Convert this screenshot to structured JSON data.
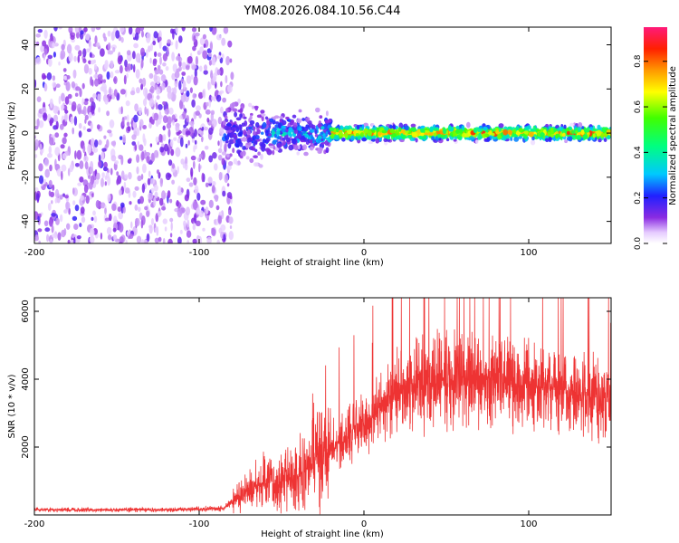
{
  "chart_data": [
    {
      "type": "heatmap",
      "title": "YM08.2026.084.10.56.C44",
      "xlabel": "Height of straight line (km)",
      "ylabel": "Frequency (Hz)",
      "xlim": [
        -200,
        150
      ],
      "ylim": [
        -50,
        48
      ],
      "xticks": [
        -200,
        -100,
        0,
        100
      ],
      "yticks": [
        -40,
        -20,
        0,
        20,
        40
      ],
      "colorbar": {
        "label": "Normalized spectral amplitude",
        "range": [
          0,
          0.95
        ],
        "ticks": [
          0.0,
          0.2,
          0.4,
          0.6,
          0.8
        ]
      },
      "regions": [
        {
          "x_range": [
            -200,
            -80
          ],
          "freq_range": [
            -50,
            48
          ],
          "amplitude": "0.05-0.15 (noise)"
        },
        {
          "x_range": [
            -80,
            -30
          ],
          "freq_range": [
            -10,
            10
          ],
          "amplitude": "0.1-0.4"
        },
        {
          "x_range": [
            -30,
            150
          ],
          "freq_range": [
            -4,
            4
          ],
          "amplitude": "0.3-0.95 peak near 0 Hz"
        }
      ]
    },
    {
      "type": "line",
      "xlabel": "Height of straight line (km)",
      "ylabel": "SNR (10 * v/v)",
      "xlim": [
        -200,
        150
      ],
      "ylim": [
        0,
        6400
      ],
      "xticks": [
        -200,
        -100,
        0,
        100
      ],
      "yticks": [
        2000,
        4000,
        6000
      ],
      "series": [
        {
          "name": "SNR",
          "color": "#ee3333",
          "x": [
            -200,
            -180,
            -160,
            -140,
            -120,
            -100,
            -85,
            -80,
            -70,
            -60,
            -50,
            -40,
            -30,
            -20,
            -10,
            0,
            10,
            20,
            30,
            40,
            50,
            60,
            70,
            80,
            90,
            100,
            110,
            120,
            130,
            140,
            150
          ],
          "y": [
            150,
            150,
            150,
            150,
            150,
            170,
            200,
            400,
            700,
            900,
            1000,
            1100,
            1600,
            2000,
            2400,
            2700,
            3100,
            3600,
            3800,
            3900,
            4000,
            4050,
            4000,
            3950,
            3900,
            3850,
            3750,
            3600,
            3500,
            3450,
            3400
          ]
        }
      ]
    }
  ]
}
